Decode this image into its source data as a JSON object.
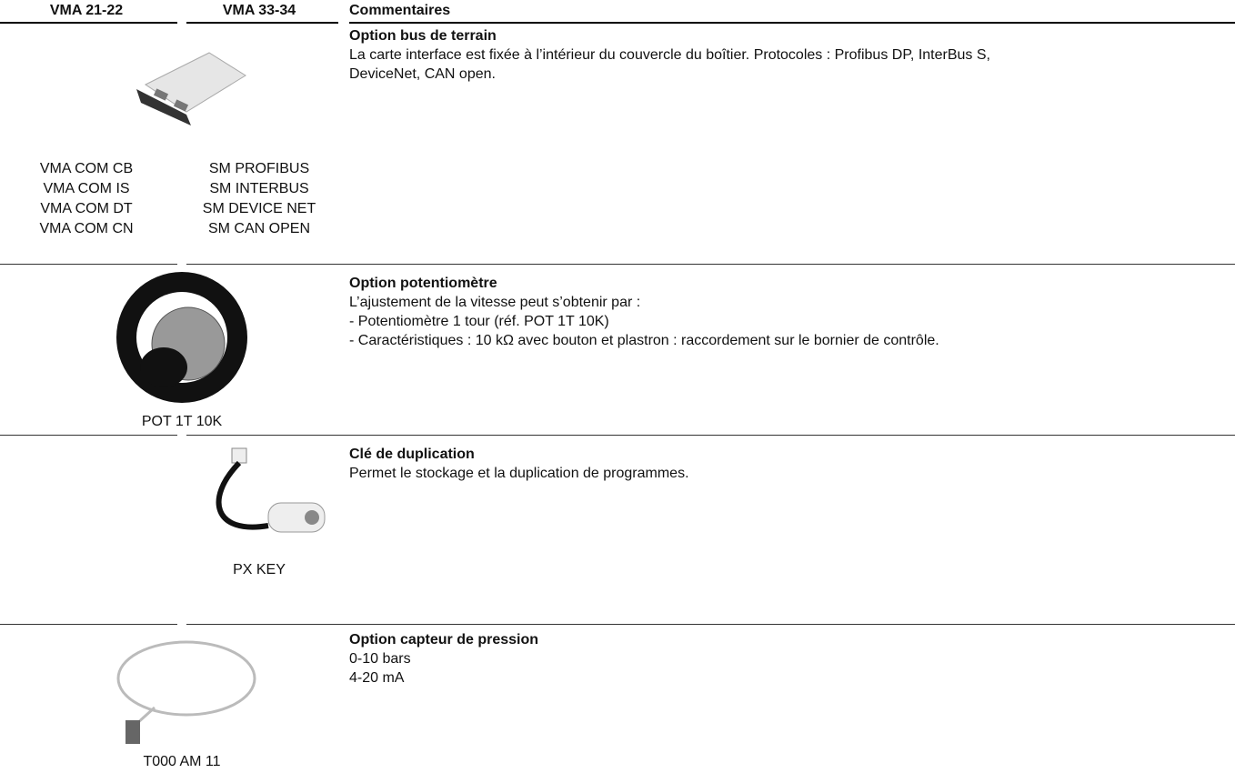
{
  "table": {
    "header": [
      "VMA 21-22",
      "VMA 33-34",
      "Commentaires"
    ],
    "rows": [
      {
        "title": "Option bus de terrain",
        "lines": [
          "La carte interface est fixée à l’intérieur du couvercle du boîtier. Protocoles : Profibus DP, InterBus S,",
          "DeviceNet, CAN open."
        ],
        "codes_vma_21_22": [
          "VMA COM CB",
          "VMA COM IS",
          "VMA COM DT",
          "VMA COM CN"
        ],
        "codes_vma_33_34": [
          "SM PROFIBUS",
          "SM INTERBUS",
          "SM DEVICE NET",
          "SM CAN OPEN"
        ]
      },
      {
        "title": "Option potentiomètre",
        "lines": [
          "L’ajustement de la vitesse peut s’obtenir par :",
          "- Potentiomètre 1 tour (réf. POT 1T 10K)",
          "- Caractéristiques : 10 kΩ avec bouton et plastron : raccordement sur le bornier de contrôle."
        ],
        "code": "POT 1T 10K"
      },
      {
        "title": "Clé de duplication",
        "lines": [
          "Permet le stockage et la duplication de programmes."
        ],
        "code": "PX KEY"
      },
      {
        "title": "Option capteur de pression",
        "lines": [
          "0-10 bars",
          "4-20 mA"
        ],
        "code": "T000 AM 11"
      }
    ]
  }
}
